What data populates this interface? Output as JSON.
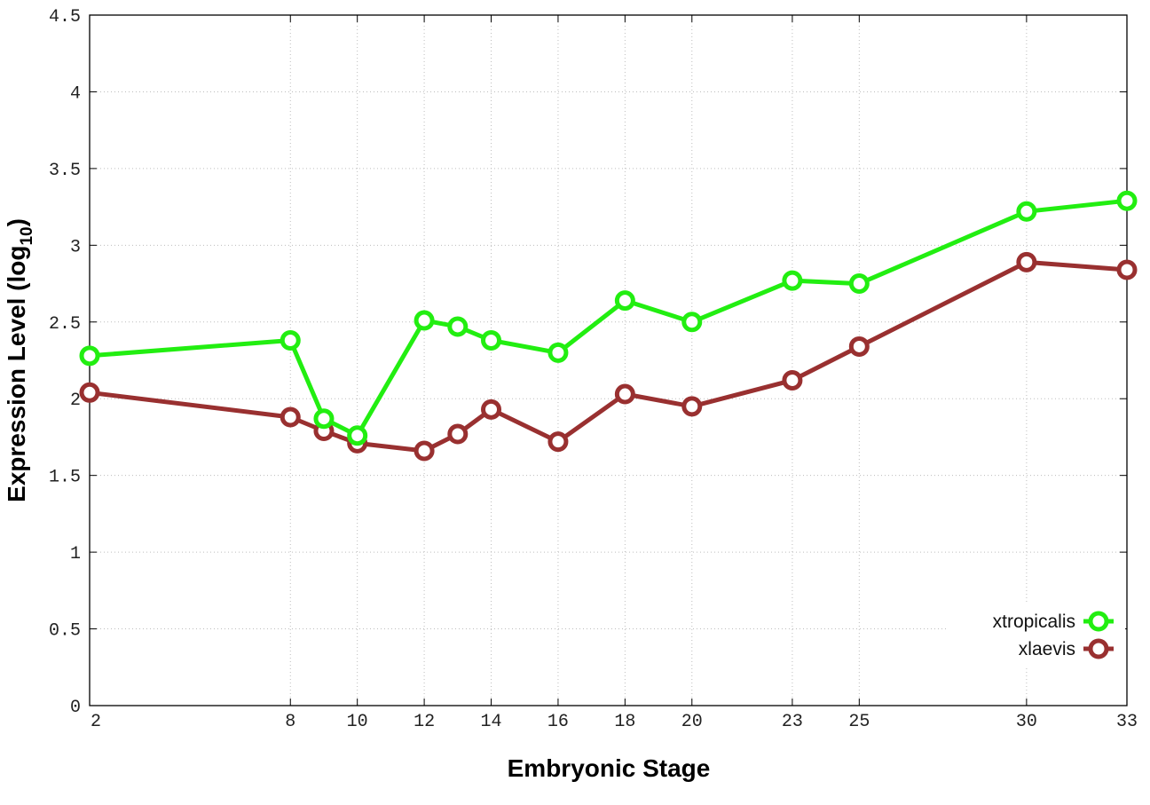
{
  "chart_data": {
    "type": "line",
    "xlabel": "Embryonic Stage",
    "ylabel_main": "Expression Level (log",
    "ylabel_sub": "10",
    "ylabel_close": ")",
    "x": [
      2,
      8,
      9,
      10,
      12,
      13,
      14,
      16,
      18,
      20,
      23,
      25,
      30,
      33
    ],
    "x_tick_labels": [
      "2",
      "8",
      "10",
      "12",
      "14",
      "16",
      "18",
      "20",
      "23",
      "25",
      "30",
      "33"
    ],
    "y_tick_labels": [
      "0",
      "0.5",
      "1",
      "1.5",
      "2",
      "2.5",
      "3",
      "3.5",
      "4",
      "4.5"
    ],
    "ylim": [
      0,
      4.5
    ],
    "xlim": [
      2,
      33
    ],
    "grid": true,
    "legend_position": "bottom-right",
    "series": [
      {
        "name": "xtropicalis",
        "color": "#22ee11",
        "values": [
          2.28,
          2.38,
          1.87,
          1.76,
          2.51,
          2.47,
          2.38,
          2.3,
          2.64,
          2.5,
          2.77,
          2.75,
          3.22,
          3.29
        ]
      },
      {
        "name": "xlaevis",
        "color": "#993030",
        "values": [
          2.04,
          1.88,
          1.79,
          1.71,
          1.66,
          1.77,
          1.93,
          1.72,
          2.03,
          1.95,
          2.12,
          2.34,
          2.89,
          2.84
        ]
      }
    ]
  }
}
